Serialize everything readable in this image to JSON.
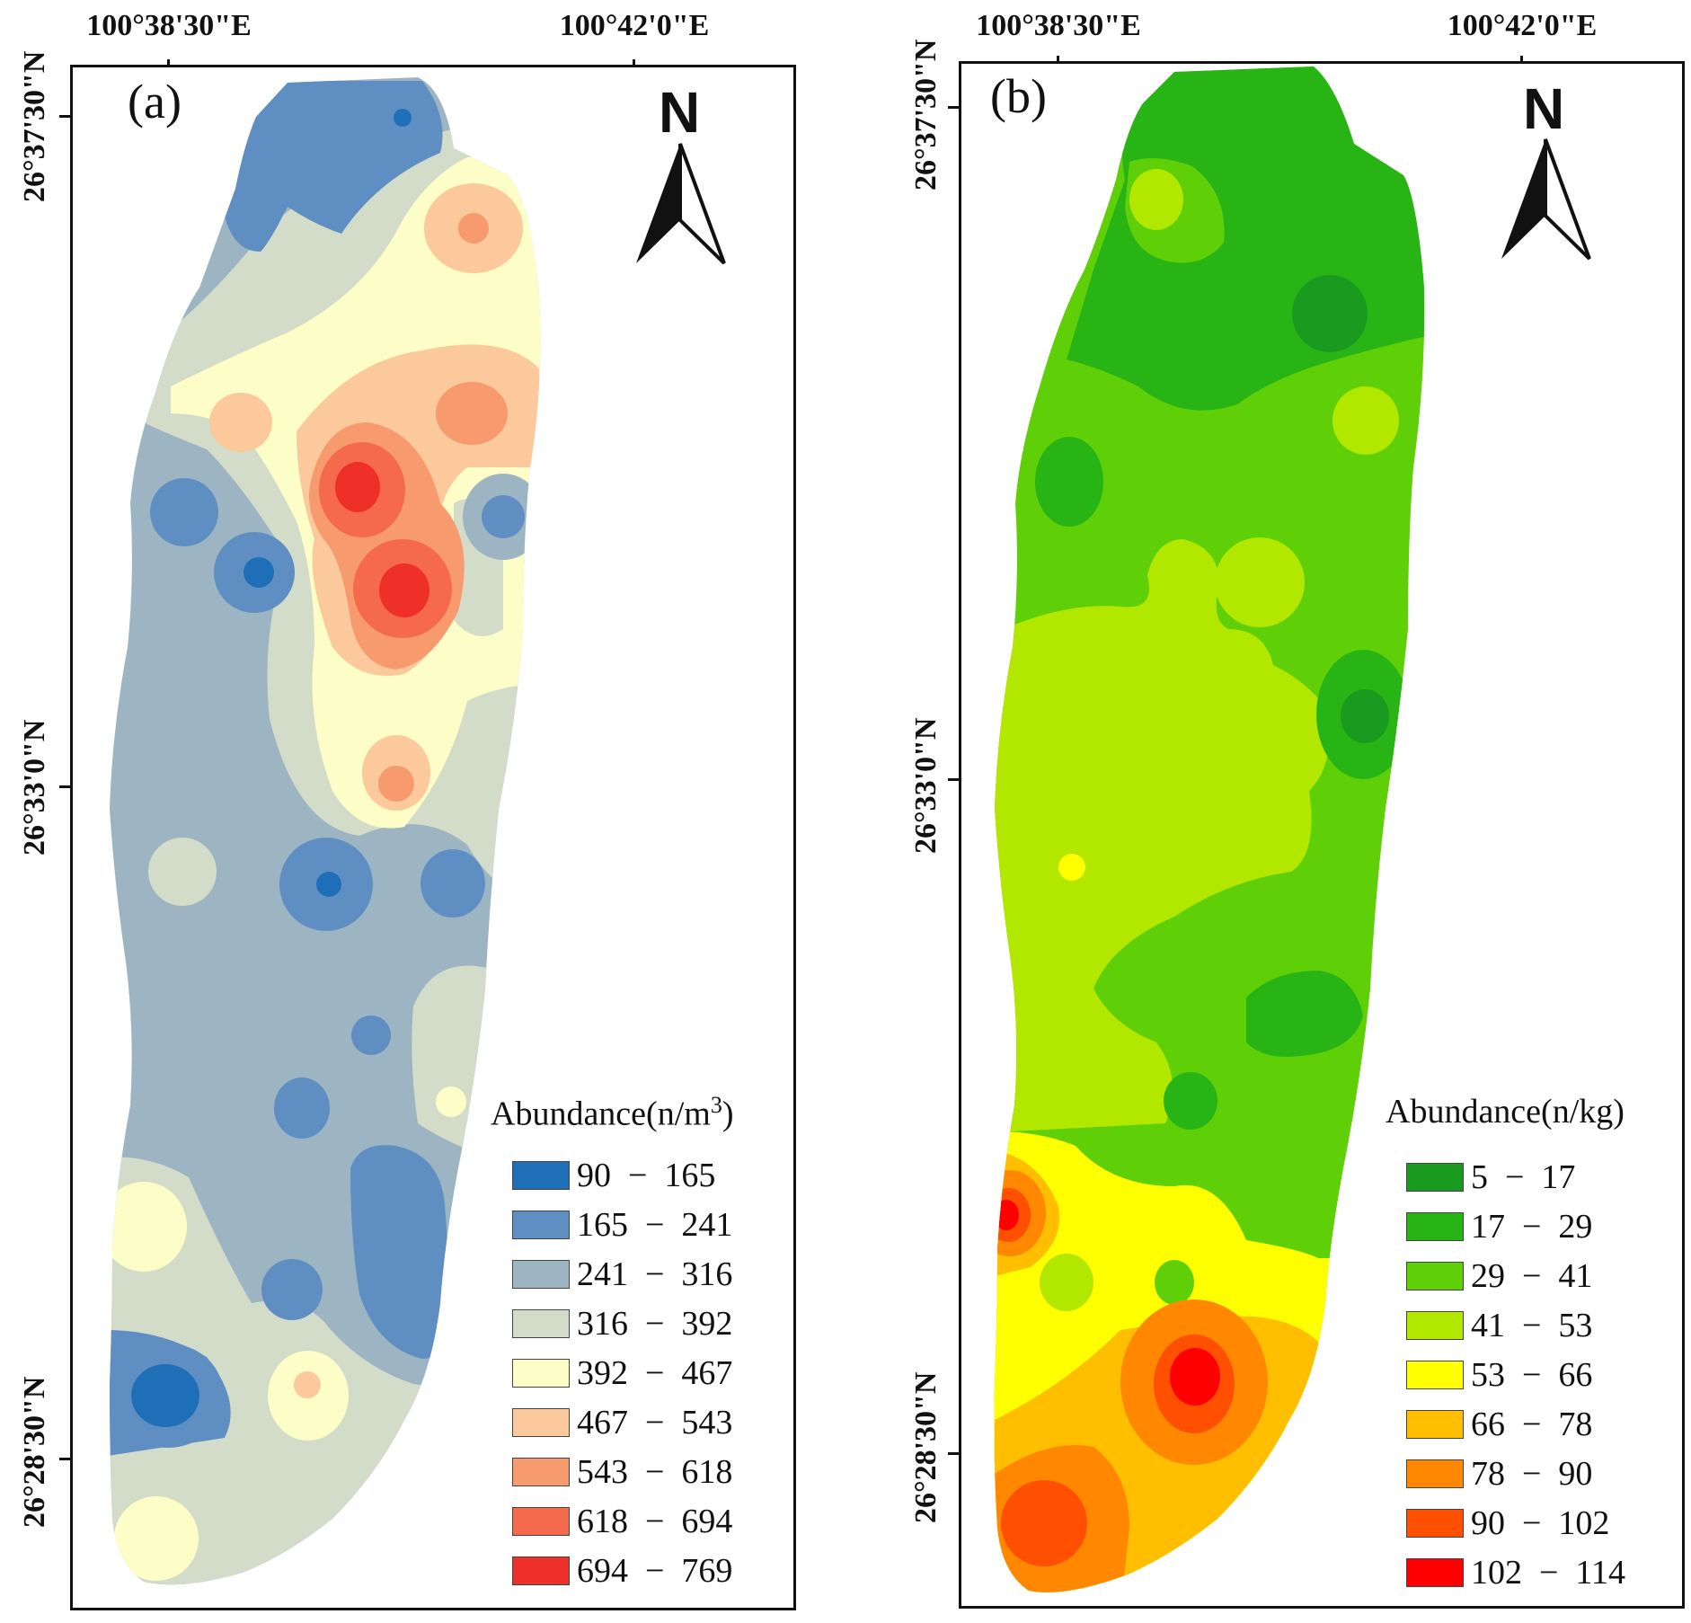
{
  "panels": {
    "a": {
      "label": "(a)",
      "lon_ticks": [
        "100°38'30\"E",
        "100°42'0\"E"
      ],
      "lat_ticks": [
        "26°37'30\"N",
        "26°33'0\"N",
        "26°28'30\"N"
      ],
      "north": "N",
      "legend_title": "Abundance(n/m",
      "legend_title_sup": "3",
      "legend_title_close": ")",
      "legend": [
        {
          "label": "90  −  165",
          "color": "#1f6fb8"
        },
        {
          "label": "165  −  241",
          "color": "#5f8fc2"
        },
        {
          "label": "241  −  316",
          "color": "#9db4c3"
        },
        {
          "label": "316  −  392",
          "color": "#d3dcc8"
        },
        {
          "label": "392  −  467",
          "color": "#fdfdc7"
        },
        {
          "label": "467  −  543",
          "color": "#fbc99b"
        },
        {
          "label": "543  −  618",
          "color": "#f79a6e"
        },
        {
          "label": "618  −  694",
          "color": "#f56a4c"
        },
        {
          "label": "694  −  769",
          "color": "#ef2f2a"
        }
      ]
    },
    "b": {
      "label": "(b)",
      "lon_ticks": [
        "100°38'30\"E",
        "100°42'0\"E"
      ],
      "lat_ticks": [
        "26°37'30\"N",
        "26°33'0\"N",
        "26°28'30\"N"
      ],
      "north": "N",
      "legend_title": "Abundance(n/kg)",
      "legend": [
        {
          "label": "5  −  17",
          "color": "#1a9a1e"
        },
        {
          "label": "17  −  29",
          "color": "#28b414"
        },
        {
          "label": "29  −  41",
          "color": "#5fcf08"
        },
        {
          "label": "41  −  53",
          "color": "#b2e800"
        },
        {
          "label": "53  −  66",
          "color": "#ffff00"
        },
        {
          "label": "66  −  78",
          "color": "#ffbf00"
        },
        {
          "label": "78  −  90",
          "color": "#ff8800"
        },
        {
          "label": "90  −  102",
          "color": "#ff4f00"
        },
        {
          "label": "102  −  114",
          "color": "#ff0000"
        }
      ]
    }
  }
}
